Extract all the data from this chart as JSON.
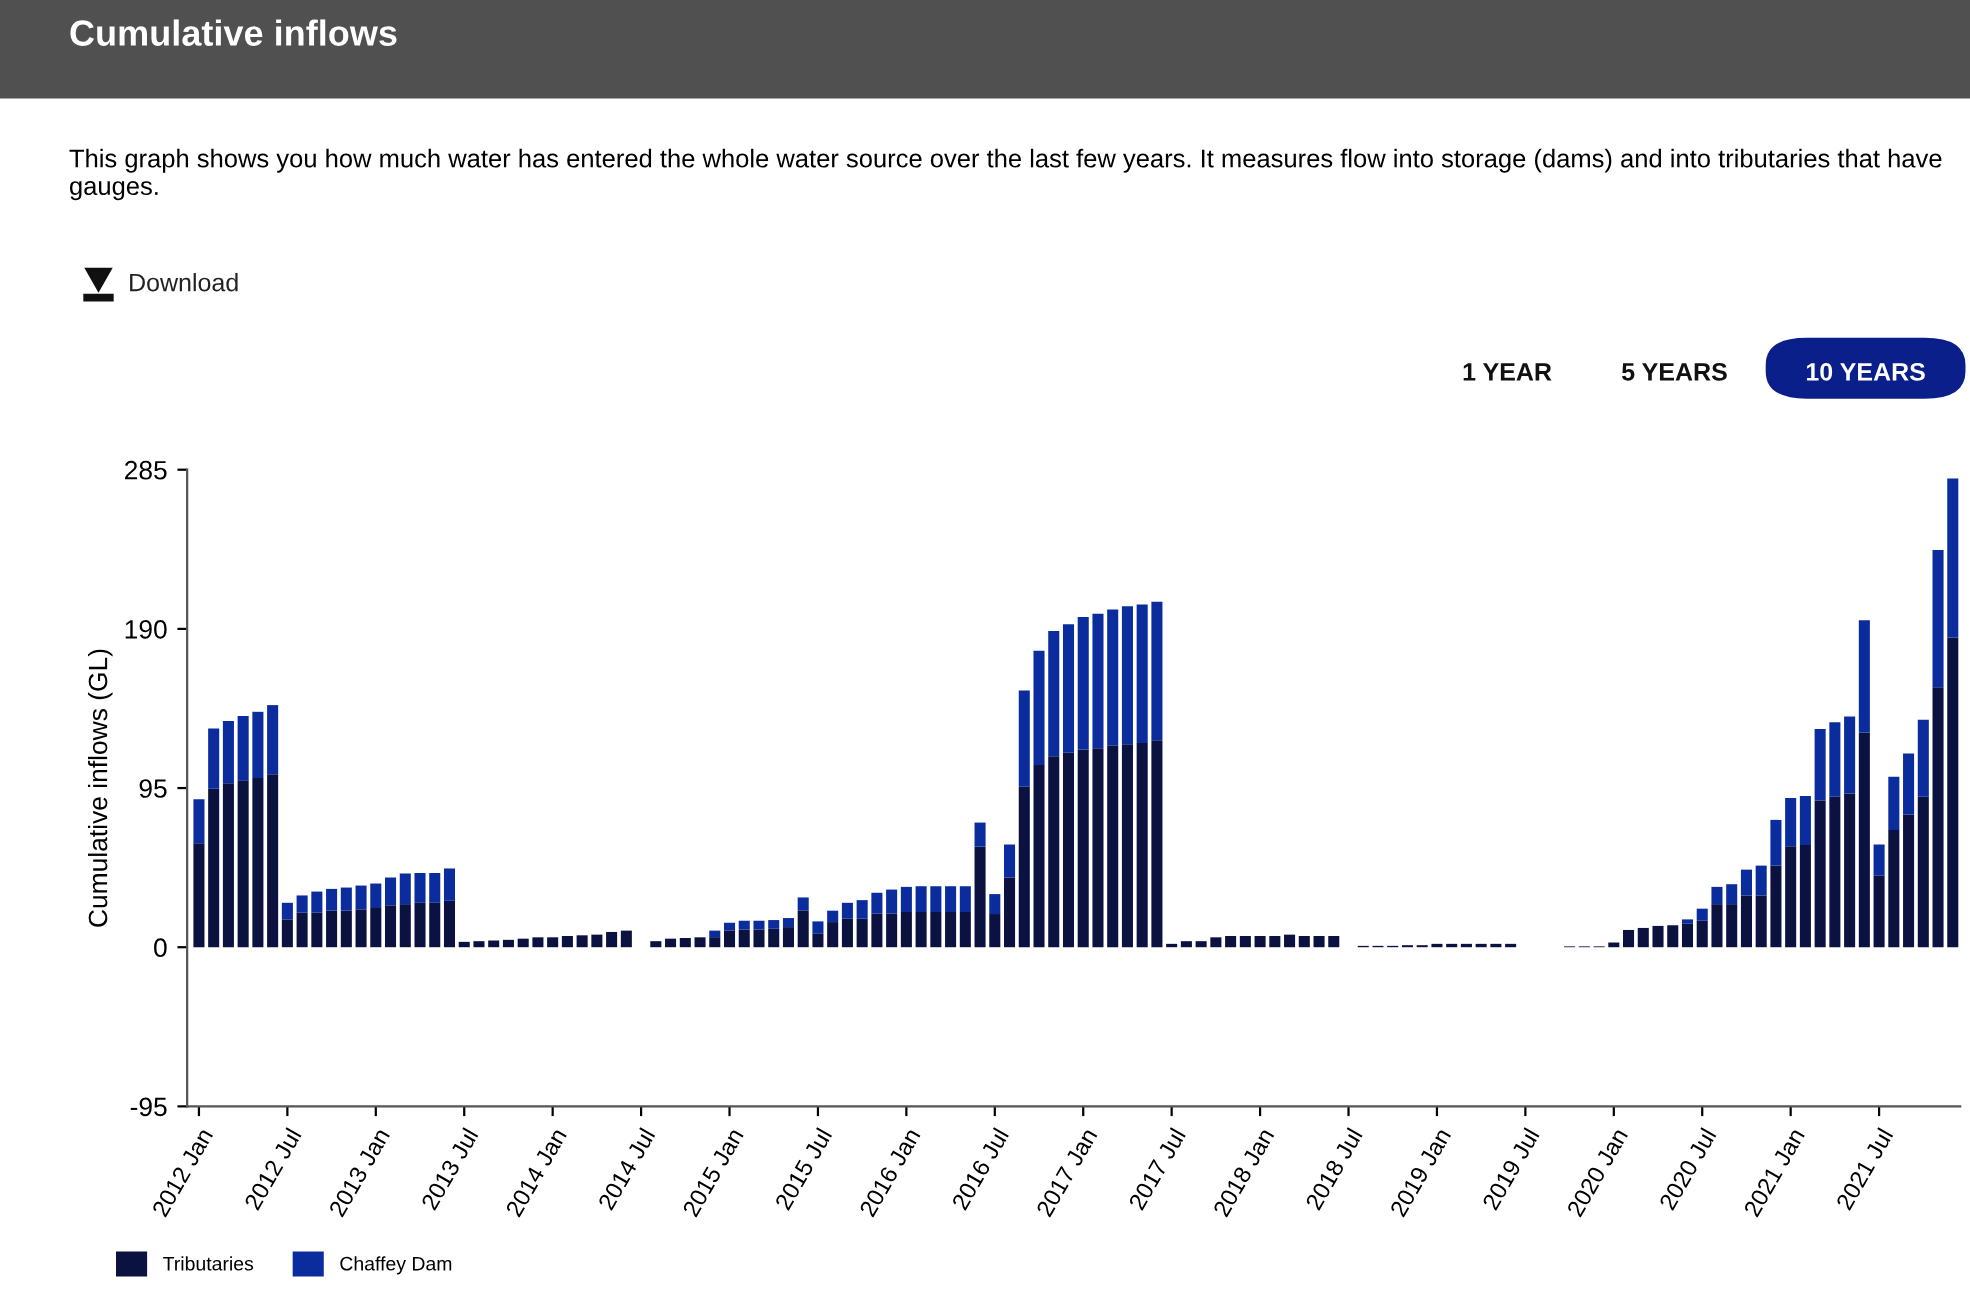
{
  "chart_data": {
    "type": "bar",
    "title": "Cumulative inflows",
    "subtitle": "This graph shows you how much water has entered the whole water source over the last few years. It measures flow into storage (dams) and into tributaries that have gauges.",
    "annotations": [
      "Download",
      "1 YEAR",
      "5 YEARS",
      "10 YEARS"
    ],
    "ylabel": "Cumulative inflows (GL)",
    "stacked": true,
    "legend": "bottom left",
    "ylim": [
      -95,
      285
    ],
    "yticks": [
      -95,
      0,
      95,
      190,
      285
    ],
    "categories": [
      "2012 Jan",
      null,
      null,
      null,
      null,
      null,
      "2012 Jul",
      null,
      null,
      null,
      null,
      null,
      "2013 Jan",
      null,
      null,
      null,
      null,
      null,
      "2013 Jul",
      null,
      null,
      null,
      null,
      null,
      "2014 Jan",
      null,
      null,
      null,
      null,
      null,
      "2014 Jul",
      null,
      null,
      null,
      null,
      null,
      "2015 Jan",
      null,
      null,
      null,
      null,
      null,
      "2015 Jul",
      null,
      null,
      null,
      null,
      null,
      "2016 Jan",
      null,
      null,
      null,
      null,
      null,
      "2016 Jul",
      null,
      null,
      null,
      null,
      null,
      "2017 Jan",
      null,
      null,
      null,
      null,
      null,
      "2017 Jul",
      null,
      null,
      null,
      null,
      null,
      "2018 Jan",
      null,
      null,
      null,
      null,
      null,
      "2018 Jul",
      null,
      null,
      null,
      null,
      null,
      "2019 Jan",
      null,
      null,
      null,
      null,
      null,
      "2019 Jul",
      null,
      null,
      null,
      null,
      null,
      "2020 Jan",
      null,
      null,
      null,
      null,
      null,
      "2020 Jul",
      null,
      null,
      null,
      null,
      null,
      "2021 Jan",
      null,
      null,
      null,
      null,
      null,
      "2021 Jul",
      null,
      null,
      null,
      null,
      null
    ],
    "series": [
      {
        "name": "Tributaries",
        "color": "#0b1240",
        "values": [
          62,
          94.6,
          97.8,
          99.7,
          101,
          103.3,
          16.6,
          20.6,
          20.6,
          21.8,
          21.8,
          22.6,
          23.4,
          25,
          25.7,
          26.5,
          26.5,
          27.7,
          3.2,
          3.6,
          4,
          4.4,
          5.1,
          5.9,
          5.9,
          6.7,
          7.1,
          7.5,
          9.1,
          9.9,
          null,
          3.6,
          5.1,
          5.5,
          5.9,
          6,
          10,
          10.5,
          10.5,
          11,
          12,
          22,
          8,
          15,
          17,
          17,
          20,
          20,
          21,
          21,
          21,
          21,
          21,
          60,
          19.8,
          41.6,
          95.8,
          108.8,
          114,
          116,
          118,
          118.7,
          120.3,
          121.1,
          121.9,
          123.5,
          2,
          3.6,
          3.6,
          5.9,
          6.7,
          6.7,
          6.7,
          6.7,
          7.5,
          6.7,
          6.7,
          6.7,
          null,
          0.8,
          0.8,
          0.8,
          1.2,
          1.2,
          2,
          2,
          2,
          2,
          2,
          2,
          null,
          null,
          null,
          0.5,
          0.5,
          0.5,
          2.8,
          10.3,
          11.5,
          12.7,
          13.1,
          14,
          15.8,
          25.7,
          25.7,
          30.9,
          30.9,
          48.7,
          60.2,
          61,
          87.5,
          89.8,
          91.8,
          128.2,
          42.7,
          70,
          79.2,
          89.8,
          155.2,
          184.8
        ]
      },
      {
        "name": "Chaffey Dam",
        "color": "#0a2c9c",
        "values": [
          26.3,
          36,
          37.2,
          38.3,
          39.5,
          41.2,
          9.9,
          10.3,
          12.6,
          13,
          13.8,
          14.2,
          14.6,
          16.6,
          18.3,
          17.8,
          17.8,
          19.3,
          0,
          0,
          0,
          0,
          0,
          0,
          0,
          0,
          0,
          0,
          0,
          0,
          null,
          0,
          0,
          0,
          0,
          3.9,
          4.6,
          5.3,
          5.3,
          5.2,
          5.4,
          7.7,
          7.4,
          6.8,
          9.5,
          11.1,
          12.5,
          14.4,
          15,
          15.4,
          15.4,
          15.4,
          15.4,
          14.4,
          11.9,
          19.7,
          57.4,
          68.1,
          74.8,
          76.8,
          79.1,
          80.4,
          81.2,
          82.4,
          82.7,
          82.7,
          0,
          0,
          0,
          0,
          0,
          0,
          0,
          0,
          0,
          0,
          0,
          0,
          null,
          0,
          0,
          0,
          0,
          0,
          0,
          0,
          0,
          0,
          0,
          0,
          null,
          null,
          null,
          0,
          0,
          0,
          0,
          0,
          0,
          0,
          0,
          2.6,
          7.2,
          10.3,
          11.9,
          15.4,
          17.8,
          27.3,
          28.8,
          29.2,
          42.7,
          44.4,
          45.9,
          66.9,
          18.6,
          31.7,
          36.4,
          46,
          81.9,
          95
        ]
      }
    ]
  }
}
